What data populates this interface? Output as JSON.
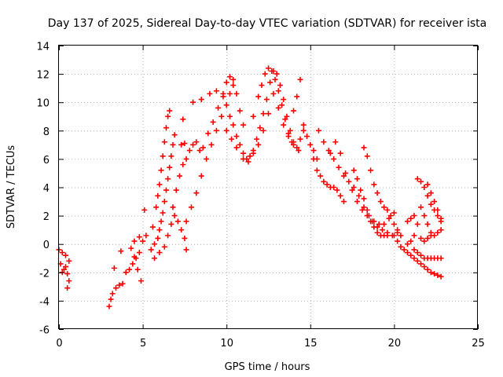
{
  "chart_data": {
    "type": "scatter",
    "title": "Day 137 of 2025, Sidereal Day-to-day VTEC variation (SDTVAR) for receiver ista",
    "xlabel": "GPS time / hours",
    "ylabel": "SDTVAR / TECUs",
    "xlim": [
      0,
      25
    ],
    "ylim": [
      -6,
      14
    ],
    "xticks": [
      0,
      5,
      10,
      15,
      20,
      25
    ],
    "yticks": [
      -6,
      -4,
      -2,
      0,
      2,
      4,
      6,
      8,
      10,
      12,
      14
    ],
    "grid": true,
    "marker": "+",
    "series": [
      {
        "name": "SDTVAR",
        "color": "#ff0000",
        "points": [
          [
            0.0,
            -0.4
          ],
          [
            0.2,
            -0.6
          ],
          [
            0.4,
            -0.8
          ],
          [
            0.6,
            -1.2
          ],
          [
            0.1,
            -1.4
          ],
          [
            0.3,
            -1.8
          ],
          [
            0.5,
            -2.1
          ],
          [
            0.6,
            -2.6
          ],
          [
            0.5,
            -3.1
          ],
          [
            0.2,
            -2.0
          ],
          [
            0.4,
            -1.6
          ],
          [
            3.0,
            -4.4
          ],
          [
            3.1,
            -3.9
          ],
          [
            3.2,
            -3.5
          ],
          [
            3.4,
            -3.1
          ],
          [
            3.6,
            -2.9
          ],
          [
            3.8,
            -2.8
          ],
          [
            3.3,
            -1.7
          ],
          [
            3.7,
            -0.5
          ],
          [
            4.0,
            -2.0
          ],
          [
            4.2,
            -1.8
          ],
          [
            4.4,
            -1.4
          ],
          [
            4.6,
            -1.0
          ],
          [
            4.8,
            -0.6
          ],
          [
            5.0,
            0.2
          ],
          [
            5.2,
            0.6
          ],
          [
            4.3,
            -0.3
          ],
          [
            4.5,
            -0.9
          ],
          [
            4.7,
            -1.8
          ],
          [
            4.9,
            -2.6
          ],
          [
            4.5,
            0.2
          ],
          [
            4.8,
            0.5
          ],
          [
            5.1,
            2.4
          ],
          [
            5.5,
            -0.4
          ],
          [
            5.7,
            0.0
          ],
          [
            5.9,
            0.4
          ],
          [
            6.0,
            1.0
          ],
          [
            6.1,
            1.6
          ],
          [
            6.2,
            2.2
          ],
          [
            6.3,
            3.0
          ],
          [
            6.4,
            3.8
          ],
          [
            6.5,
            4.6
          ],
          [
            6.6,
            5.4
          ],
          [
            6.7,
            6.2
          ],
          [
            6.8,
            7.0
          ],
          [
            6.9,
            7.7
          ],
          [
            5.6,
            1.2
          ],
          [
            5.8,
            2.6
          ],
          [
            5.9,
            3.4
          ],
          [
            6.0,
            4.2
          ],
          [
            6.1,
            5.2
          ],
          [
            6.2,
            6.2
          ],
          [
            6.3,
            7.2
          ],
          [
            6.4,
            8.2
          ],
          [
            6.5,
            9.0
          ],
          [
            6.6,
            9.4
          ],
          [
            5.7,
            -1.0
          ],
          [
            6.0,
            -0.6
          ],
          [
            6.3,
            -0.2
          ],
          [
            6.5,
            0.6
          ],
          [
            6.7,
            1.4
          ],
          [
            6.9,
            2.0
          ],
          [
            7.1,
            1.6
          ],
          [
            7.3,
            1.0
          ],
          [
            7.5,
            0.4
          ],
          [
            7.6,
            -0.4
          ],
          [
            6.8,
            2.6
          ],
          [
            7.0,
            3.8
          ],
          [
            7.2,
            4.8
          ],
          [
            7.4,
            5.6
          ],
          [
            7.6,
            6.0
          ],
          [
            7.8,
            6.6
          ],
          [
            8.0,
            7.0
          ],
          [
            8.2,
            7.2
          ],
          [
            8.4,
            6.6
          ],
          [
            7.3,
            7.0
          ],
          [
            7.5,
            7.1
          ],
          [
            7.4,
            8.8
          ],
          [
            7.6,
            1.6
          ],
          [
            7.9,
            2.6
          ],
          [
            8.2,
            3.6
          ],
          [
            8.5,
            4.8
          ],
          [
            8.8,
            6.0
          ],
          [
            9.1,
            7.0
          ],
          [
            9.4,
            8.0
          ],
          [
            9.7,
            9.0
          ],
          [
            10.0,
            9.8
          ],
          [
            10.2,
            10.6
          ],
          [
            10.4,
            11.2
          ],
          [
            8.6,
            6.8
          ],
          [
            8.9,
            7.8
          ],
          [
            9.2,
            8.6
          ],
          [
            9.5,
            9.6
          ],
          [
            9.8,
            10.6
          ],
          [
            10.0,
            11.4
          ],
          [
            10.2,
            11.8
          ],
          [
            10.4,
            11.6
          ],
          [
            10.6,
            10.6
          ],
          [
            10.8,
            9.4
          ],
          [
            11.0,
            8.4
          ],
          [
            8.0,
            10.0
          ],
          [
            8.5,
            10.2
          ],
          [
            9.0,
            10.6
          ],
          [
            9.4,
            10.8
          ],
          [
            9.8,
            10.4
          ],
          [
            10.2,
            9.0
          ],
          [
            10.4,
            8.4
          ],
          [
            10.6,
            7.6
          ],
          [
            10.8,
            7.0
          ],
          [
            11.0,
            6.4
          ],
          [
            11.2,
            6.0
          ],
          [
            11.4,
            6.2
          ],
          [
            11.6,
            6.6
          ],
          [
            11.8,
            7.4
          ],
          [
            12.0,
            8.2
          ],
          [
            12.2,
            9.2
          ],
          [
            12.4,
            10.2
          ],
          [
            12.6,
            11.4
          ],
          [
            12.8,
            12.2
          ],
          [
            13.0,
            12.0
          ],
          [
            13.2,
            11.2
          ],
          [
            13.4,
            10.2
          ],
          [
            13.6,
            9.0
          ],
          [
            13.8,
            8.0
          ],
          [
            14.0,
            7.2
          ],
          [
            14.2,
            6.8
          ],
          [
            14.4,
            7.4
          ],
          [
            14.6,
            8.0
          ],
          [
            10.0,
            8.0
          ],
          [
            10.3,
            7.4
          ],
          [
            10.6,
            6.8
          ],
          [
            11.0,
            6.0
          ],
          [
            11.3,
            5.8
          ],
          [
            11.6,
            6.4
          ],
          [
            11.9,
            7.0
          ],
          [
            12.2,
            8.0
          ],
          [
            12.5,
            9.2
          ],
          [
            12.8,
            10.6
          ],
          [
            13.1,
            9.6
          ],
          [
            13.4,
            8.4
          ],
          [
            13.7,
            7.6
          ],
          [
            14.0,
            7.0
          ],
          [
            14.3,
            6.6
          ],
          [
            11.6,
            9.0
          ],
          [
            11.9,
            10.4
          ],
          [
            12.1,
            11.2
          ],
          [
            12.3,
            12.0
          ],
          [
            12.5,
            12.4
          ],
          [
            12.7,
            12.2
          ],
          [
            12.9,
            11.6
          ],
          [
            13.1,
            10.8
          ],
          [
            13.3,
            9.8
          ],
          [
            13.5,
            8.8
          ],
          [
            13.7,
            7.8
          ],
          [
            13.9,
            7.2
          ],
          [
            14.0,
            9.4
          ],
          [
            14.2,
            10.4
          ],
          [
            14.4,
            11.6
          ],
          [
            14.6,
            8.4
          ],
          [
            14.8,
            7.6
          ],
          [
            15.0,
            7.0
          ],
          [
            15.2,
            6.6
          ],
          [
            15.4,
            6.0
          ],
          [
            15.2,
            6.0
          ],
          [
            15.4,
            5.2
          ],
          [
            15.6,
            4.8
          ],
          [
            15.8,
            4.4
          ],
          [
            16.0,
            4.2
          ],
          [
            16.2,
            4.0
          ],
          [
            16.4,
            4.0
          ],
          [
            16.6,
            3.8
          ],
          [
            16.8,
            3.4
          ],
          [
            17.0,
            3.0
          ],
          [
            15.5,
            8.0
          ],
          [
            15.8,
            7.2
          ],
          [
            16.1,
            6.6
          ],
          [
            16.4,
            6.0
          ],
          [
            16.7,
            5.4
          ],
          [
            17.0,
            4.8
          ],
          [
            17.3,
            4.4
          ],
          [
            17.6,
            4.0
          ],
          [
            17.9,
            3.4
          ],
          [
            18.2,
            2.6
          ],
          [
            18.5,
            2.0
          ],
          [
            18.8,
            1.6
          ],
          [
            19.1,
            1.4
          ],
          [
            19.4,
            1.4
          ],
          [
            19.7,
            1.8
          ],
          [
            20.0,
            2.2
          ],
          [
            16.2,
            6.4
          ],
          [
            16.5,
            7.2
          ],
          [
            16.8,
            6.4
          ],
          [
            17.1,
            5.0
          ],
          [
            17.5,
            3.8
          ],
          [
            17.8,
            3.0
          ],
          [
            18.1,
            2.4
          ],
          [
            18.4,
            2.0
          ],
          [
            18.7,
            1.6
          ],
          [
            19.0,
            1.2
          ],
          [
            19.3,
            1.0
          ],
          [
            19.6,
            0.8
          ],
          [
            19.9,
            0.6
          ],
          [
            20.2,
            0.8
          ],
          [
            18.2,
            6.8
          ],
          [
            18.4,
            6.2
          ],
          [
            18.6,
            5.2
          ],
          [
            18.8,
            4.2
          ],
          [
            19.0,
            3.6
          ],
          [
            19.2,
            3.0
          ],
          [
            19.4,
            2.6
          ],
          [
            19.6,
            2.4
          ],
          [
            19.8,
            2.0
          ],
          [
            20.0,
            1.4
          ],
          [
            20.2,
            1.0
          ],
          [
            20.4,
            0.6
          ],
          [
            17.6,
            5.2
          ],
          [
            17.8,
            4.6
          ],
          [
            18.0,
            3.8
          ],
          [
            18.2,
            3.2
          ],
          [
            18.4,
            2.4
          ],
          [
            18.6,
            1.6
          ],
          [
            18.8,
            1.2
          ],
          [
            19.0,
            0.8
          ],
          [
            19.2,
            0.6
          ],
          [
            19.4,
            0.6
          ],
          [
            19.6,
            0.6
          ],
          [
            20.0,
            0.6
          ],
          [
            20.2,
            0.2
          ],
          [
            20.4,
            -0.2
          ],
          [
            20.6,
            -0.4
          ],
          [
            20.8,
            -0.6
          ],
          [
            21.0,
            -0.8
          ],
          [
            21.2,
            -1.0
          ],
          [
            21.4,
            -1.2
          ],
          [
            21.6,
            -1.4
          ],
          [
            21.8,
            -1.6
          ],
          [
            22.0,
            -1.8
          ],
          [
            22.2,
            -2.0
          ],
          [
            22.4,
            -2.1
          ],
          [
            22.6,
            -2.2
          ],
          [
            22.8,
            -2.3
          ],
          [
            20.8,
            0.0
          ],
          [
            21.0,
            0.2
          ],
          [
            21.2,
            0.6
          ],
          [
            21.4,
            1.4
          ],
          [
            21.6,
            2.6
          ],
          [
            21.8,
            2.0
          ],
          [
            22.0,
            1.4
          ],
          [
            22.2,
            0.8
          ],
          [
            22.4,
            0.6
          ],
          [
            22.6,
            0.8
          ],
          [
            22.8,
            1.0
          ],
          [
            21.2,
            -0.4
          ],
          [
            21.4,
            -0.6
          ],
          [
            21.6,
            -0.8
          ],
          [
            21.8,
            -1.0
          ],
          [
            22.0,
            -1.0
          ],
          [
            22.2,
            -1.0
          ],
          [
            22.4,
            -1.0
          ],
          [
            22.6,
            -1.0
          ],
          [
            22.8,
            -1.0
          ],
          [
            21.4,
            4.6
          ],
          [
            21.6,
            4.4
          ],
          [
            21.8,
            4.0
          ],
          [
            22.0,
            3.4
          ],
          [
            22.2,
            2.8
          ],
          [
            22.4,
            2.4
          ],
          [
            22.6,
            2.0
          ],
          [
            22.8,
            1.6
          ],
          [
            22.0,
            4.2
          ],
          [
            22.2,
            3.6
          ],
          [
            22.4,
            3.0
          ],
          [
            22.6,
            2.4
          ],
          [
            22.8,
            1.8
          ],
          [
            20.8,
            1.6
          ],
          [
            21.0,
            1.8
          ],
          [
            21.2,
            2.0
          ],
          [
            21.6,
            0.4
          ],
          [
            21.8,
            0.2
          ],
          [
            22.0,
            0.4
          ],
          [
            22.2,
            0.6
          ]
        ]
      }
    ]
  }
}
